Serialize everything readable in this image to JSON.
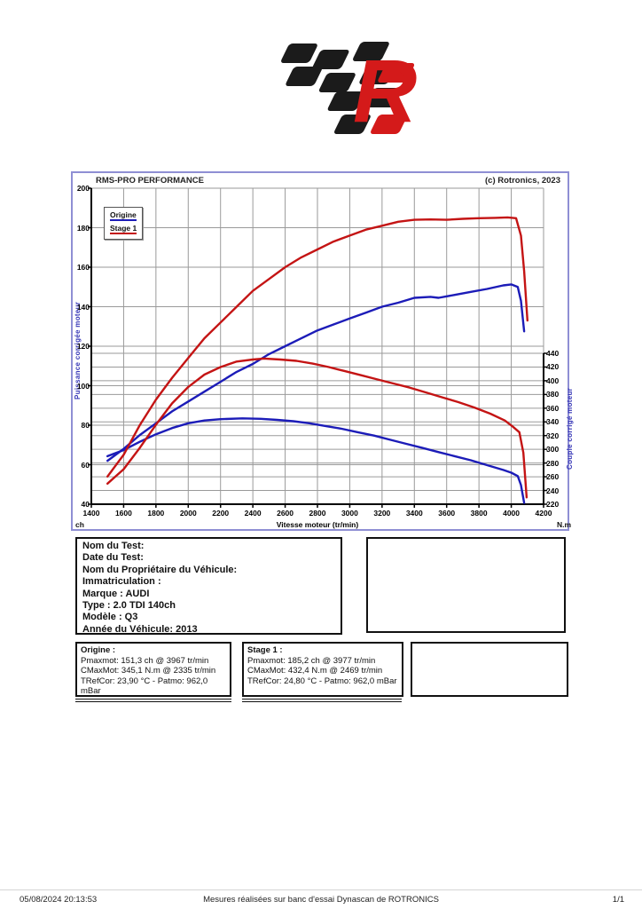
{
  "logo": {
    "name": "rms-checkered-flag-logo",
    "black": "#1b1b1b",
    "red": "#d41a1a",
    "letter": "R"
  },
  "chart_data": {
    "type": "line",
    "title": "RMS-PRO PERFORMANCE",
    "copyright": "(c) Rotronics, 2023",
    "xlabel": "Vitesse moteur (tr/min)",
    "x_unit_left": "ch",
    "x_unit_right": "N.m",
    "ylabel_left": "Puissance corrigée moteur",
    "ylabel_right": "Couple corrigé moteur",
    "x_range": [
      1400,
      4200
    ],
    "x_step": 200,
    "y_left_range": [
      40,
      200
    ],
    "y_left_step": 20,
    "y_right_range": [
      220,
      440
    ],
    "y_right_step": 20,
    "grid": true,
    "grid_color": "#9a9a9a",
    "axis_color": "#000000",
    "legend_position": "top-left",
    "legend": [
      {
        "label": "Origine",
        "color": "#1c1cb8"
      },
      {
        "label": "Stage 1",
        "color": "#c41414"
      }
    ],
    "series": [
      {
        "name": "origine-puissance",
        "axis": "left",
        "color": "#1c1cb8",
        "points": [
          [
            1500,
            62
          ],
          [
            1600,
            68
          ],
          [
            1700,
            75
          ],
          [
            1800,
            81
          ],
          [
            1900,
            87
          ],
          [
            2000,
            92
          ],
          [
            2100,
            97
          ],
          [
            2200,
            102
          ],
          [
            2300,
            107
          ],
          [
            2400,
            111
          ],
          [
            2500,
            116
          ],
          [
            2600,
            120
          ],
          [
            2700,
            124
          ],
          [
            2800,
            128
          ],
          [
            2900,
            131
          ],
          [
            3000,
            134
          ],
          [
            3100,
            137
          ],
          [
            3200,
            140
          ],
          [
            3300,
            142
          ],
          [
            3400,
            144.5
          ],
          [
            3500,
            145
          ],
          [
            3550,
            144.5
          ],
          [
            3650,
            146
          ],
          [
            3750,
            147.5
          ],
          [
            3850,
            149
          ],
          [
            3950,
            150.8
          ],
          [
            4000,
            151.3
          ],
          [
            4040,
            150
          ],
          [
            4060,
            143
          ],
          [
            4080,
            127.5
          ]
        ]
      },
      {
        "name": "origine-couple",
        "axis": "right",
        "color": "#1c1cb8",
        "points": [
          [
            1500,
            290
          ],
          [
            1600,
            299
          ],
          [
            1700,
            311
          ],
          [
            1800,
            322
          ],
          [
            1900,
            331
          ],
          [
            2000,
            338
          ],
          [
            2100,
            342
          ],
          [
            2200,
            344
          ],
          [
            2335,
            345.1
          ],
          [
            2450,
            344.5
          ],
          [
            2550,
            343
          ],
          [
            2650,
            341
          ],
          [
            2750,
            338
          ],
          [
            2850,
            334
          ],
          [
            2950,
            330
          ],
          [
            3050,
            325
          ],
          [
            3150,
            320
          ],
          [
            3250,
            314
          ],
          [
            3350,
            308
          ],
          [
            3450,
            302
          ],
          [
            3550,
            296
          ],
          [
            3650,
            290
          ],
          [
            3750,
            284
          ],
          [
            3850,
            277
          ],
          [
            3950,
            270
          ],
          [
            4000,
            266
          ],
          [
            4040,
            261
          ],
          [
            4060,
            248
          ],
          [
            4080,
            222
          ]
        ]
      },
      {
        "name": "stage1-puissance",
        "axis": "left",
        "color": "#c41414",
        "points": [
          [
            1500,
            54
          ],
          [
            1600,
            65
          ],
          [
            1700,
            80
          ],
          [
            1800,
            93
          ],
          [
            1900,
            104
          ],
          [
            2000,
            114
          ],
          [
            2100,
            124
          ],
          [
            2200,
            132
          ],
          [
            2300,
            140
          ],
          [
            2400,
            148
          ],
          [
            2500,
            154
          ],
          [
            2600,
            160
          ],
          [
            2700,
            165
          ],
          [
            2800,
            169
          ],
          [
            2900,
            173
          ],
          [
            3000,
            176
          ],
          [
            3100,
            179
          ],
          [
            3200,
            181
          ],
          [
            3300,
            183
          ],
          [
            3400,
            184
          ],
          [
            3500,
            184.2
          ],
          [
            3600,
            184
          ],
          [
            3700,
            184.5
          ],
          [
            3800,
            184.8
          ],
          [
            3900,
            185
          ],
          [
            3977,
            185.2
          ],
          [
            4030,
            184.8
          ],
          [
            4060,
            176
          ],
          [
            4080,
            158
          ],
          [
            4100,
            133
          ]
        ]
      },
      {
        "name": "stage1-couple",
        "axis": "right",
        "color": "#c41414",
        "points": [
          [
            1500,
            250
          ],
          [
            1600,
            271
          ],
          [
            1700,
            302
          ],
          [
            1800,
            336
          ],
          [
            1900,
            367
          ],
          [
            2000,
            391
          ],
          [
            2100,
            409
          ],
          [
            2200,
            420
          ],
          [
            2300,
            428
          ],
          [
            2400,
            431
          ],
          [
            2469,
            432.4
          ],
          [
            2570,
            431
          ],
          [
            2670,
            429
          ],
          [
            2770,
            425
          ],
          [
            2870,
            420
          ],
          [
            2970,
            414
          ],
          [
            3070,
            408
          ],
          [
            3170,
            402
          ],
          [
            3270,
            396
          ],
          [
            3370,
            390
          ],
          [
            3470,
            383
          ],
          [
            3570,
            376
          ],
          [
            3670,
            369
          ],
          [
            3770,
            361
          ],
          [
            3870,
            352
          ],
          [
            3960,
            342
          ],
          [
            4010,
            333
          ],
          [
            4050,
            325
          ],
          [
            4075,
            295
          ],
          [
            4095,
            230
          ]
        ]
      }
    ],
    "annotations": {
      "origine_pmax": "151,3 ch @ 3967 tr/min",
      "origine_cmax": "345,1 N.m @ 2335 tr/min",
      "stage1_pmax": "185,2 ch @ 3977 tr/min",
      "stage1_cmax": "432,4 N.m @ 2469 tr/min"
    }
  },
  "info": {
    "lines": [
      "Nom du Test:",
      "Date du Test:",
      "Nom du Propriétaire du Véhicule:",
      "Immatriculation :",
      "Marque  : AUDI",
      "Type  : 2.0 TDI 140ch",
      "Modèle  : Q3",
      "Année du Véhicule: 2013"
    ]
  },
  "origine_panel": {
    "title": "Origine :",
    "lines": [
      "Pmaxmot: 151,3 ch @ 3967 tr/min",
      "CMaxMot: 345,1 N.m @ 2335 tr/min",
      "TRefCor: 23,90 °C - Patmo: 962,0 mBar"
    ]
  },
  "stage1_panel": {
    "title": "Stage 1 :",
    "lines": [
      "Pmaxmot: 185,2 ch @ 3977 tr/min",
      "CMaxMot: 432,4 N.m @ 2469 tr/min",
      "TRefCor: 24,80 °C - Patmo: 962,0 mBar"
    ]
  },
  "footer": {
    "datetime": "05/08/2024 20:13:53",
    "center": "Mesures réalisées sur banc d'essai Dynascan de ROTRONICS",
    "page": "1/1"
  }
}
